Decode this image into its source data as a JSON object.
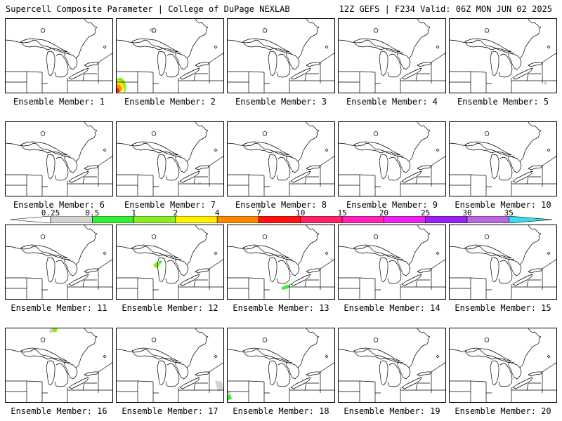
{
  "header": {
    "left": "Supercell Composite Parameter | College of DuPage NEXLAB",
    "right": "12Z GEFS | F234 Valid: 06Z MON JUN 02 2025"
  },
  "colorbar": {
    "labels": [
      "0.25",
      "0.5",
      "1",
      "2",
      "4",
      "7",
      "10",
      "15",
      "20",
      "25",
      "30",
      "35"
    ],
    "colors": [
      "#d2d2d2",
      "#33ee33",
      "#88ee22",
      "#ffee00",
      "#ff8800",
      "#ff1111",
      "#ff2266",
      "#ff22bb",
      "#ee22ee",
      "#9922ee",
      "#bb66dd",
      "#33ddee"
    ]
  },
  "members": [
    {
      "label": "Ensemble Member: 1"
    },
    {
      "label": "Ensemble Member: 2"
    },
    {
      "label": "Ensemble Member: 3"
    },
    {
      "label": "Ensemble Member: 4"
    },
    {
      "label": "Ensemble Member: 5"
    },
    {
      "label": "Ensemble Member: 6"
    },
    {
      "label": "Ensemble Member: 7"
    },
    {
      "label": "Ensemble Member: 8"
    },
    {
      "label": "Ensemble Member: 9"
    },
    {
      "label": "Ensemble Member: 10"
    },
    {
      "label": "Ensemble Member: 11"
    },
    {
      "label": "Ensemble Member: 12"
    },
    {
      "label": "Ensemble Member: 13"
    },
    {
      "label": "Ensemble Member: 14"
    },
    {
      "label": "Ensemble Member: 15"
    },
    {
      "label": "Ensemble Member: 16"
    },
    {
      "label": "Ensemble Member: 17"
    },
    {
      "label": "Ensemble Member: 18"
    },
    {
      "label": "Ensemble Member: 19"
    },
    {
      "label": "Ensemble Member: 20"
    }
  ]
}
